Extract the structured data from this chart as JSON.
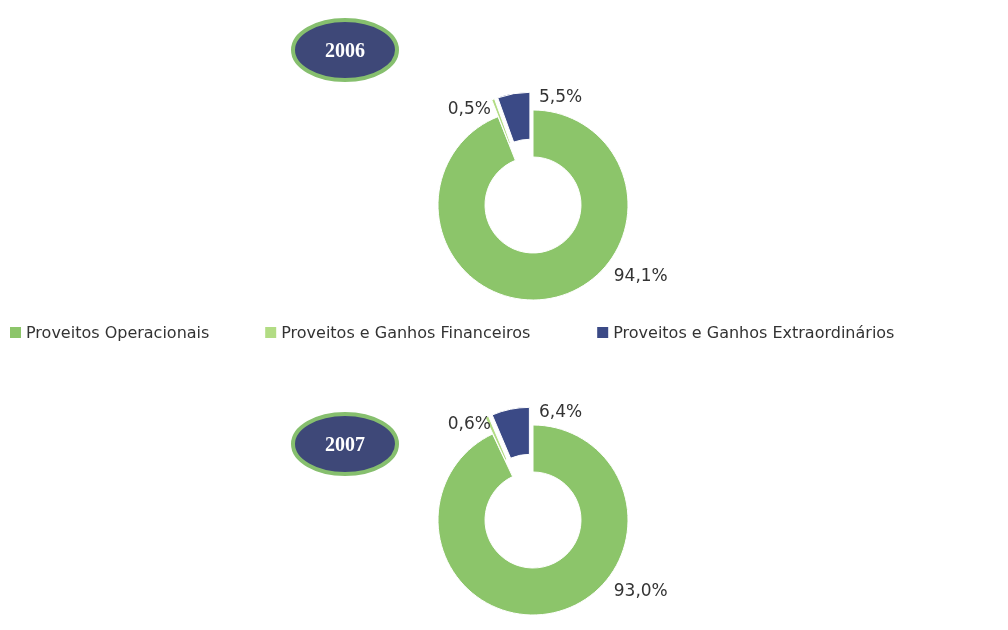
{
  "chart_data": [
    {
      "type": "donut",
      "title": "2006",
      "categories": [
        null,
        null,
        null
      ],
      "values": [
        94.1,
        0.5,
        5.5
      ],
      "value_labels": [
        "94,1%",
        "0,5%",
        "5,5%"
      ],
      "colors": [
        "#8cc56a",
        "#b2dc84",
        "#3b4a86"
      ]
    },
    {
      "type": "donut",
      "title": "2007",
      "categories": [
        "Proveitos Operacionais",
        "Proveitos e Ganhos Financeiros",
        "Proveitos e Ganhos Extraordinários"
      ],
      "values": [
        93.0,
        0.6,
        6.4
      ],
      "value_labels": [
        "93,0%",
        "0,6%",
        "6,4%"
      ],
      "colors": [
        "#8cc56a",
        "#b2dc84",
        "#3b4a86"
      ],
      "legend": "top"
    }
  ]
}
